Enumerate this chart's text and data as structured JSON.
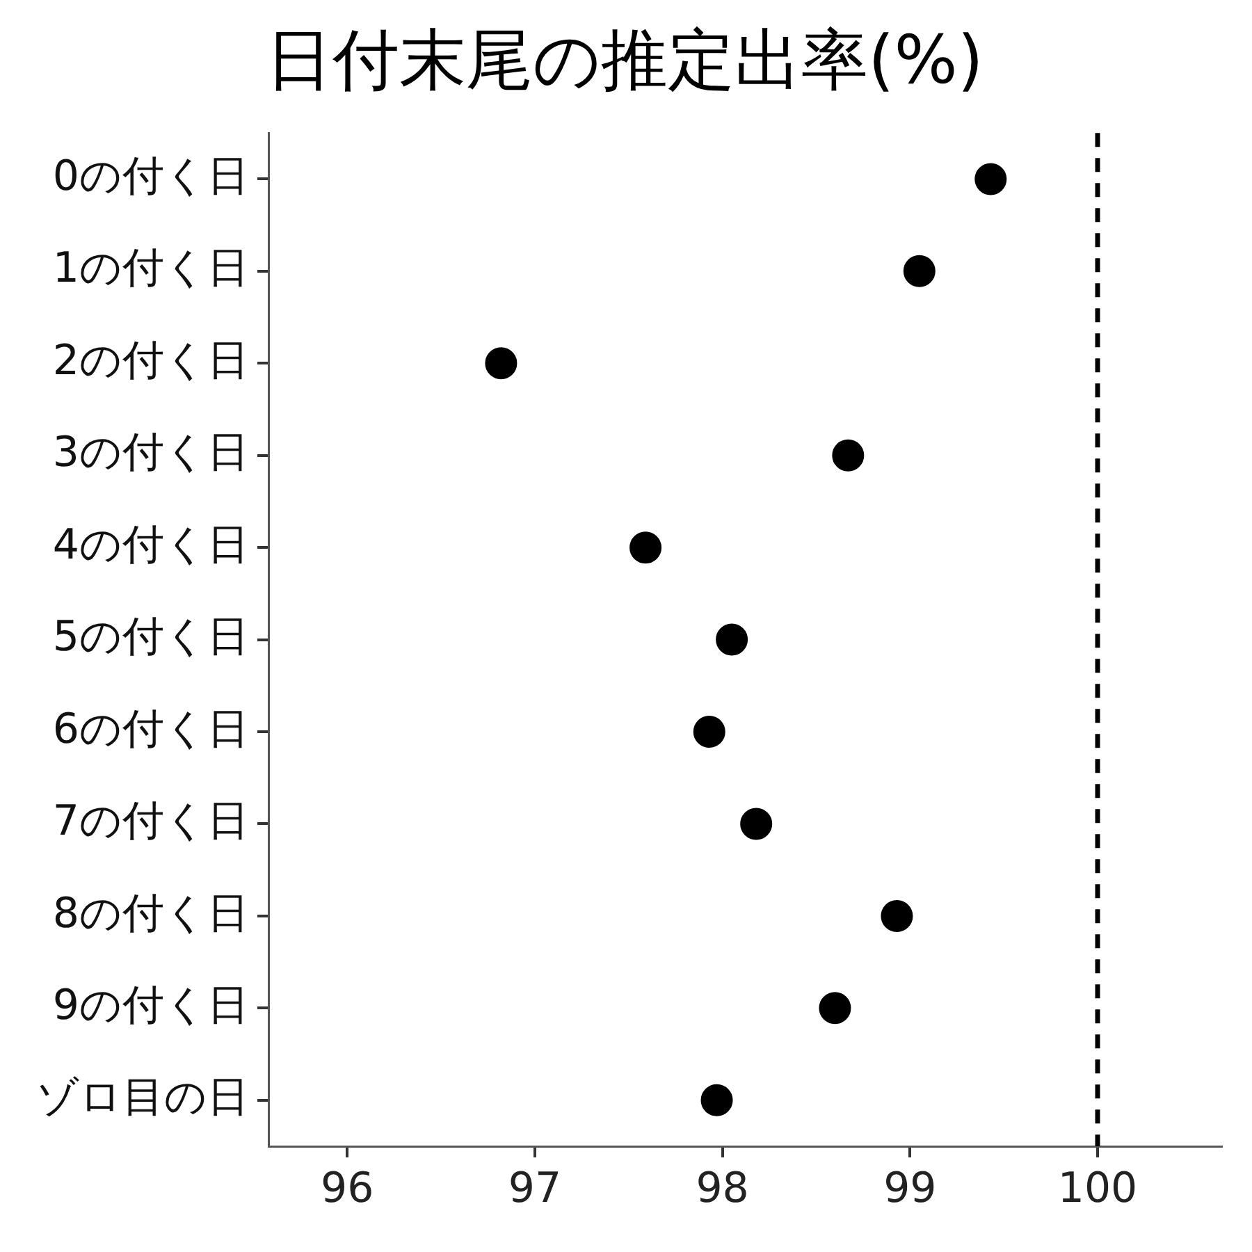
{
  "chart_data": {
    "type": "scatter",
    "orientation": "horizontal",
    "title": "日付末尾の推定出率(%)",
    "categories": [
      "0の付く日",
      "1の付く日",
      "2の付く日",
      "3の付く日",
      "4の付く日",
      "5の付く日",
      "6の付く日",
      "7の付く日",
      "8の付く日",
      "9の付く日",
      "ゾロ目の日"
    ],
    "values": [
      99.43,
      99.05,
      96.82,
      98.67,
      97.59,
      98.05,
      97.93,
      98.18,
      98.93,
      98.6,
      97.97
    ],
    "color": "#000000",
    "marker": "circle",
    "xlim": [
      95.58,
      100.66
    ],
    "xticks": [
      96,
      97,
      98,
      99,
      100
    ],
    "ref_lines": [
      {
        "axis": "x",
        "value": 100,
        "line_style": "dashed",
        "color": "#000000"
      }
    ],
    "grid": false,
    "legend": false
  }
}
